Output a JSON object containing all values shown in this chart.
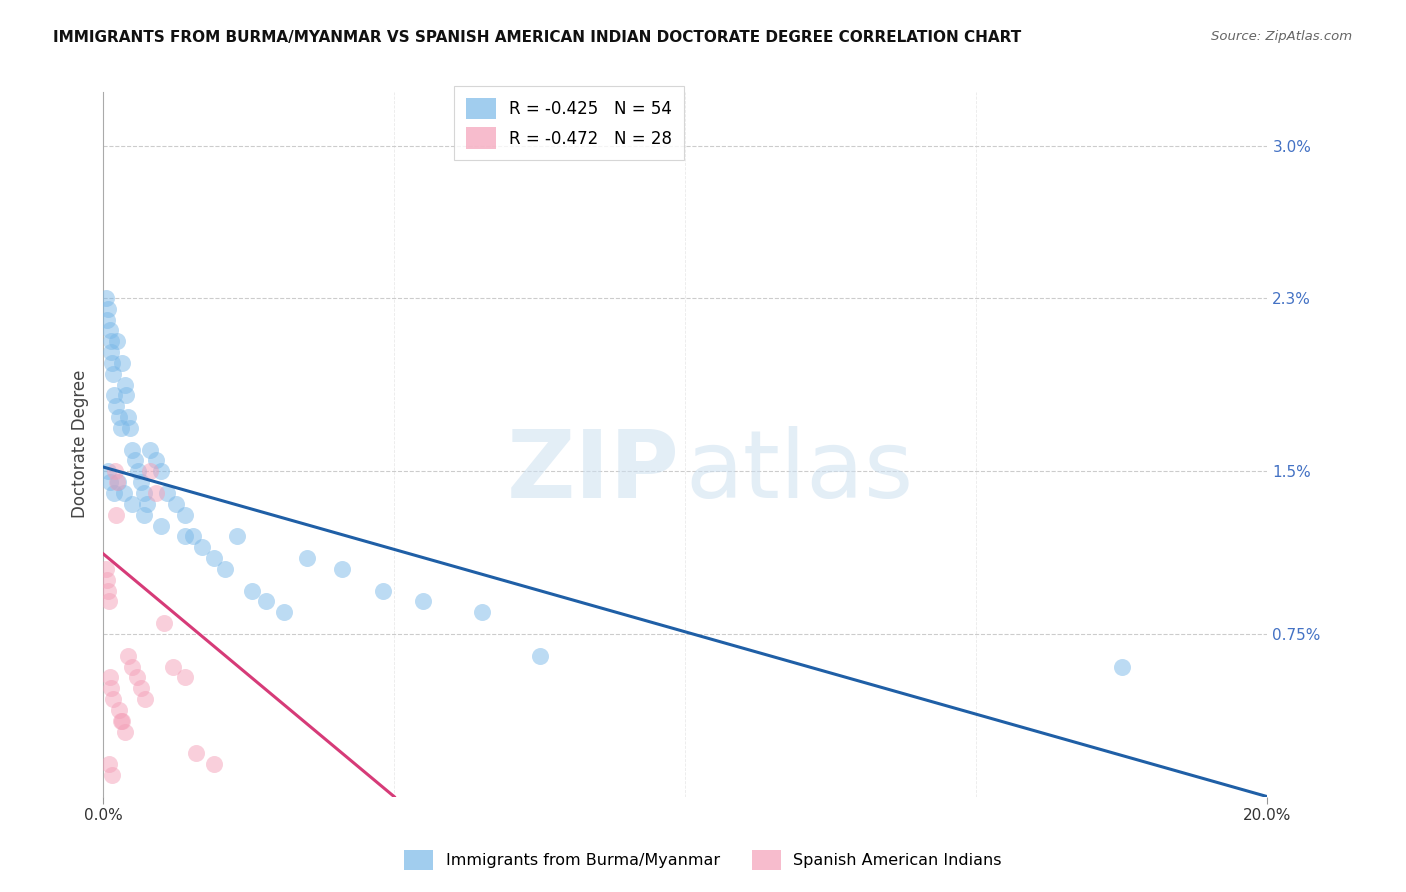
{
  "title": "IMMIGRANTS FROM BURMA/MYANMAR VS SPANISH AMERICAN INDIAN DOCTORATE DEGREE CORRELATION CHART",
  "source": "Source: ZipAtlas.com",
  "ylabel": "Doctorate Degree",
  "xlim": [
    0.0,
    20.0
  ],
  "ylim": [
    0.0,
    3.25
  ],
  "blue_scatter_x": [
    0.05,
    0.07,
    0.09,
    0.11,
    0.13,
    0.13,
    0.15,
    0.17,
    0.19,
    0.22,
    0.24,
    0.27,
    0.3,
    0.33,
    0.37,
    0.4,
    0.43,
    0.47,
    0.5,
    0.55,
    0.6,
    0.65,
    0.7,
    0.75,
    0.8,
    0.9,
    1.0,
    1.1,
    1.25,
    1.4,
    1.55,
    1.7,
    1.9,
    2.1,
    2.3,
    2.55,
    2.8,
    3.1,
    3.5,
    4.1,
    4.8,
    5.5,
    6.5,
    7.5,
    0.08,
    0.12,
    0.18,
    0.25,
    0.35,
    0.5,
    0.7,
    1.0,
    1.4,
    17.5
  ],
  "blue_scatter_y": [
    2.3,
    2.2,
    2.25,
    2.15,
    2.1,
    2.05,
    2.0,
    1.95,
    1.85,
    1.8,
    2.1,
    1.75,
    1.7,
    2.0,
    1.9,
    1.85,
    1.75,
    1.7,
    1.6,
    1.55,
    1.5,
    1.45,
    1.4,
    1.35,
    1.6,
    1.55,
    1.5,
    1.4,
    1.35,
    1.3,
    1.2,
    1.15,
    1.1,
    1.05,
    1.2,
    0.95,
    0.9,
    0.85,
    1.1,
    1.05,
    0.95,
    0.9,
    0.85,
    0.65,
    1.5,
    1.45,
    1.4,
    1.45,
    1.4,
    1.35,
    1.3,
    1.25,
    1.2,
    0.6
  ],
  "pink_scatter_x": [
    0.05,
    0.07,
    0.08,
    0.1,
    0.12,
    0.14,
    0.17,
    0.2,
    0.23,
    0.27,
    0.32,
    0.37,
    0.43,
    0.5,
    0.58,
    0.65,
    0.72,
    0.8,
    0.9,
    1.05,
    1.2,
    1.4,
    1.6,
    1.9,
    0.1,
    0.15,
    0.22,
    0.3
  ],
  "pink_scatter_y": [
    1.05,
    1.0,
    0.95,
    0.9,
    0.55,
    0.5,
    0.45,
    1.5,
    1.45,
    0.4,
    0.35,
    0.3,
    0.65,
    0.6,
    0.55,
    0.5,
    0.45,
    1.5,
    1.4,
    0.8,
    0.6,
    0.55,
    0.2,
    0.15,
    0.15,
    0.1,
    1.3,
    0.35
  ],
  "blue_line_x0": 0.0,
  "blue_line_y0": 1.52,
  "blue_line_x1": 20.0,
  "blue_line_y1": 0.0,
  "pink_line_x0": 0.0,
  "pink_line_y0": 1.12,
  "pink_line_x1": 5.0,
  "pink_line_y1": 0.0,
  "blue_color": "#7ab8e8",
  "pink_color": "#f4a0b8",
  "blue_line_color": "#1f5fa6",
  "pink_line_color": "#d63b78",
  "bg_color": "#ffffff",
  "grid_color": "#cccccc",
  "title_fontsize": 11,
  "right_axis_color": "#4472c4",
  "right_yticks": [
    0.75,
    1.5,
    2.3,
    3.0
  ],
  "right_ytick_labels": [
    "0.75%",
    "1.5%",
    "2.3%",
    "3.0%"
  ],
  "legend1_text": "R = -0.425   N = 54",
  "legend2_text": "R = -0.472   N = 28",
  "bottom_legend1": "Immigrants from Burma/Myanmar",
  "bottom_legend2": "Spanish American Indians"
}
